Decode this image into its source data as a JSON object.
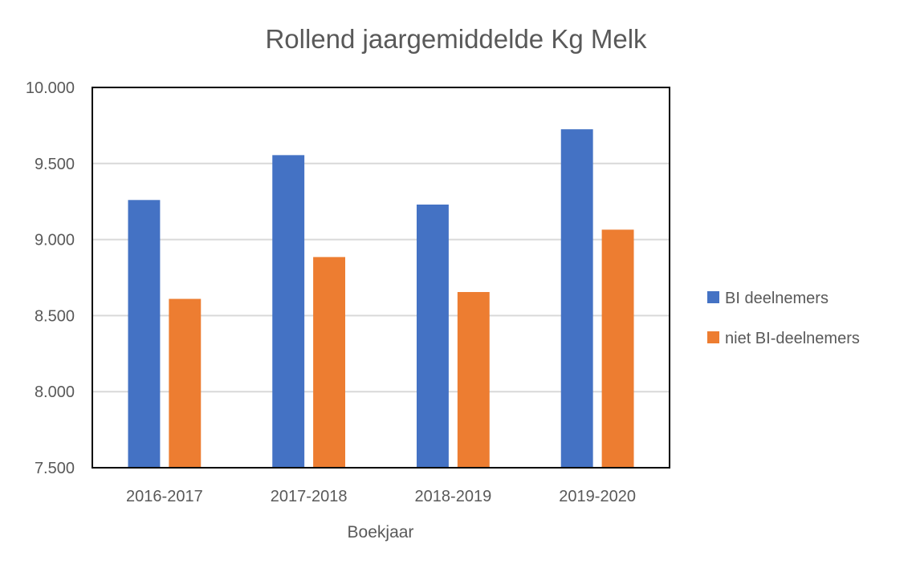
{
  "chart_data": {
    "type": "bar",
    "title": "Rollend jaargemiddelde Kg Melk",
    "xlabel": "Boekjaar",
    "ylabel": "",
    "categories": [
      "2016-2017",
      "2017-2018",
      "2018-2019",
      "2019-2020"
    ],
    "series": [
      {
        "name": "BI deelnemers",
        "color": "#4472C4",
        "values": [
          9260,
          9555,
          9230,
          9725
        ]
      },
      {
        "name": "niet BI-deelnemers",
        "color": "#ED7D31",
        "values": [
          8610,
          8885,
          8655,
          9065
        ]
      }
    ],
    "ylim": [
      7500,
      10000
    ],
    "ytick_values": [
      7500,
      8000,
      8500,
      9000,
      9500,
      10000
    ],
    "ytick_labels": [
      "7.500",
      "8.000",
      "8.500",
      "9.000",
      "9.500",
      "10.000"
    ],
    "grid": true,
    "legend_position": "right"
  }
}
